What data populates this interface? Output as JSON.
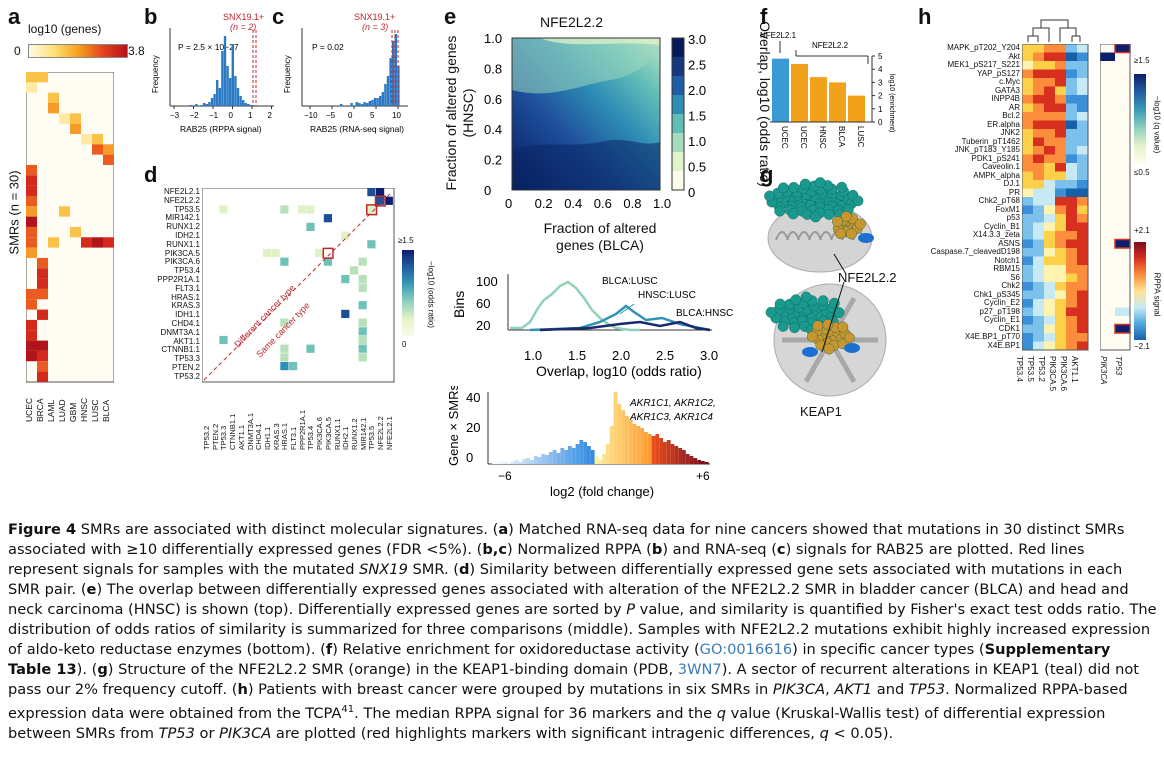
{
  "panels": {
    "a": "a",
    "b": "b",
    "c": "c",
    "d": "d",
    "e": "e",
    "f": "f",
    "g": "g",
    "h": "h"
  },
  "panel_a": {
    "scale_title": "log10 (genes)",
    "scale_min": "0",
    "scale_max": "3.8",
    "ylabel": "SMRs (n = 30)",
    "cancers": [
      "UCEC",
      "BRCA",
      "LAML",
      "LUAD",
      "GBM",
      "HNSC",
      "LUSC",
      "BLCA"
    ]
  },
  "panel_b": {
    "annot": "SNX19.1+",
    "annot2": "(n = 2)",
    "pval": "P = 2.5 × 10−27",
    "ylabel": "Frequency",
    "xlabel": "RAB25 (RPPA signal)",
    "ticks": [
      "−3",
      "−2",
      "−1",
      "0",
      "1",
      "2"
    ]
  },
  "panel_c": {
    "annot": "SNX19.1+",
    "annot2": "(n = 3)",
    "pval": "P = 0.02",
    "ylabel": "Frequency",
    "xlabel": "RAB25 (RNA-seq signal)",
    "ticks": [
      "−10",
      "−5",
      "0",
      "5",
      "10"
    ]
  },
  "panel_d": {
    "rows": [
      "NFE2L2.1",
      "NFE2L2.2",
      "TP53.5",
      "MIR142.1",
      "RUNX1.2",
      "IDH2.1",
      "RUNX1.1",
      "PIK3CA.5",
      "PIK3CA.6",
      "TP53.4",
      "PPP2R1A.1",
      "FLT3.1",
      "HRAS.1",
      "KRAS.3",
      "IDH1.1",
      "CHD4.1",
      "DNMT3A.1",
      "AKT1.1",
      "CTNNB1.1",
      "TP53.3",
      "PTEN.2",
      "TP53.2"
    ],
    "diff": "Different cancer type",
    "same": "Same cancer type",
    "scale_max": "≥1.5",
    "scale_min": "0",
    "scale_title": "−log10 (odds ratio)"
  },
  "panel_e": {
    "title": "NFE2L2.2",
    "ylabel": "Fraction of altered genes (HNSC)",
    "xlabel": "Fraction of altered genes (BLCA)",
    "cbar_title": "Overlap, log10 (odds ratio)",
    "cbar_ticks": [
      "3.0",
      "2.5",
      "2.0",
      "1.5",
      "1.0",
      "0.5",
      "0"
    ],
    "x_ticks": [
      "0",
      "0.2",
      "0.4",
      "0.6",
      "0.8",
      "1.0"
    ],
    "y_ticks": [
      "1.0",
      "0.8",
      "0.6",
      "0.4",
      "0.2",
      "0"
    ],
    "mid_ylabel": "Bins",
    "mid_xlabel": "Overlap, log10 (odds ratio)",
    "mid_yticks": [
      "100",
      "60",
      "20"
    ],
    "mid_xticks": [
      "1.0",
      "1.5",
      "2.0",
      "2.5",
      "3.0"
    ],
    "series_labels": [
      "BLCA:LUSC",
      "HNSC:LUSC",
      "BLCA:HNSC"
    ],
    "bot_ylabel": "Gene × SMRs",
    "bot_yticks": [
      "40",
      "20",
      "0"
    ],
    "bot_xlabel": "log2 (fold change)",
    "bot_xticks": [
      "−6",
      "+6"
    ],
    "genes": "AKR1C1, AKR1C2,",
    "genes2": "AKR1C3, AKR1C4"
  },
  "panel_f": {
    "label1": "NFE2L2.1",
    "label2": "NFE2L2.2",
    "cats": [
      "UCEC",
      "UCEC",
      "HNSC",
      "BLCA",
      "LUSC"
    ],
    "ylabel": "log10 (enrichment)",
    "ticks": [
      "5",
      "4",
      "3",
      "2",
      "1",
      "0"
    ]
  },
  "panel_g": {
    "label": "NFE2L2.2",
    "label2": "KEAP1"
  },
  "panel_h": {
    "rows": [
      "MAPK_pT202_Y204",
      "Akt",
      "MEK1_pS217_S221",
      "YAP_pS127",
      "c.Myc",
      "GATA3",
      "INPP4B",
      "AR",
      "Bcl.2",
      "ER.alpha",
      "JNK2",
      "Tuberin_pT1462",
      "JNK_pT183_Y185",
      "PDK1_pS241",
      "Caveolin.1",
      "AMPK_alpha",
      "DJ.1",
      "PR",
      "Chk2_pT68",
      "FoxM1",
      "p53",
      "Cyclin_B1",
      "X14.3.3_zeta",
      "ASNS",
      "Caspase.7_cleavedD198",
      "Notch1",
      "RBM15",
      "S6",
      "Chk2",
      "Chk1_pS345",
      "Cyclin_E2",
      "p27_pT198",
      "Cyclin_E1",
      "CDK1",
      "X4E.BP1_pT70",
      "X4E.BP1"
    ],
    "cols": [
      "TP53.4",
      "TP53.5",
      "TP53.2",
      "PIK3CA.5",
      "PIK3CA.6",
      "AKT1.1"
    ],
    "qcols": [
      "PIK3CA",
      "TP53"
    ],
    "q_top": "≥1.5",
    "q_bot": "≤0.5",
    "q_title": "−log10 (q value)",
    "r_top": "+2.1",
    "r_bot": "−2.1",
    "r_title": "RPPA signal"
  },
  "caption": {
    "fig": "Figure 4",
    "text1": "  SMRs are associated with distinct molecular signatures. (",
    "a": "a",
    "text2": ") Matched RNA-seq data for nine cancers showed that mutations in 30 distinct SMRs associated with ≥10 differentially expressed genes (FDR <5%). (",
    "bc": "b,c",
    "text3": ") Normalized RPPA (",
    "b": "b",
    "text4": ") and RNA-seq (",
    "c": "c",
    "text5": ") signals for RAB25 are plotted. Red lines represent signals for samples with the mutated ",
    "snx": "SNX19",
    "text6": " SMR. (",
    "d": "d",
    "text7": ") Similarity between differentially expressed gene sets associated with mutations in each SMR pair. (",
    "e": "e",
    "text8": ") The overlap between differentially expressed genes associated with alteration of the NFE2L2.2 SMR in bladder cancer (BLCA) and head and neck carcinoma (HNSC) is shown (top). Differentially expressed genes are sorted by ",
    "p": "P",
    "text9": " value, and similarity is quantified by Fisher's exact test odds ratio. The distribution of odds ratios of similarity is summarized for three comparisons (middle). Samples with NFE2L2.2 mutations exhibit highly increased expression of aldo-keto reductase enzymes (bottom). (",
    "f": "f",
    "text10": ") Relative enrichment for oxidoreductase activity (",
    "go": "GO:0016616",
    "text11": ") in specific cancer types (",
    "sup": "Supplementary Table 13",
    "text12": "). (",
    "g": "g",
    "text13": ") Structure of the NFE2L2.2 SMR (orange) in the KEAP1-binding domain (PDB, ",
    "pdb": "3WN7",
    "text14": "). A sector of recurrent alterations in KEAP1 (teal) did not pass our 2% frequency cutoff. (",
    "h": "h",
    "text15": ") Patients with breast cancer were grouped by mutations in six SMRs in ",
    "pik": "PIK3CA",
    "text16": ", ",
    "akt": "AKT1",
    "text17": " and ",
    "tp": "TP53",
    "text18": ". Normalized RPPA-based expression data were obtained from the TCPA",
    "ref": "41",
    "text19": ". The median RPPA signal for 36 markers and the ",
    "q": "q",
    "text20": " value (Kruskal-Wallis test) of differential expression between SMRs from ",
    "tp2": "TP53",
    "text21": " or ",
    "pik2": "PIK3CA",
    "text22": " are plotted (red highlights markers with significant intragenic differences, ",
    "q2": "q",
    "text23": " < 0.05)."
  }
}
